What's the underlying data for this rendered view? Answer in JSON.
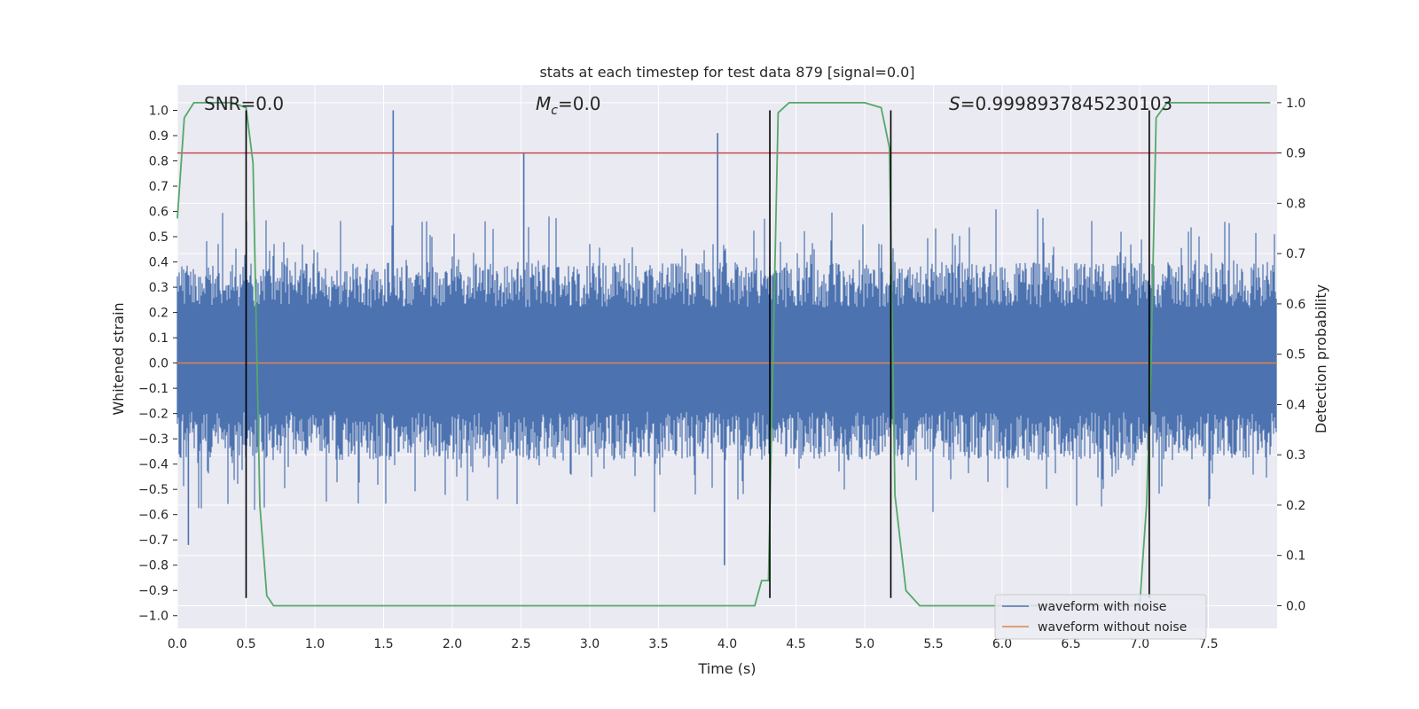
{
  "chart_data": {
    "type": "line",
    "title": "stats at each timestep for test data 879 [signal=0.0]",
    "xlabel": "Time (s)",
    "ylabel_left": "Whitened strain",
    "ylabel_right": "Detection probability",
    "xlim": [
      0.0,
      8.0
    ],
    "ylim_left": [
      -1.05,
      1.1
    ],
    "ylim_right": [
      -0.045,
      1.035
    ],
    "x_ticks": [
      "0.0",
      "0.5",
      "1.0",
      "1.5",
      "2.0",
      "2.5",
      "3.0",
      "3.5",
      "4.0",
      "4.5",
      "5.0",
      "5.5",
      "6.0",
      "6.5",
      "7.0",
      "7.5"
    ],
    "y_ticks_left": [
      "−1.0",
      "−0.9",
      "−0.8",
      "−0.7",
      "−0.6",
      "−0.5",
      "−0.4",
      "−0.3",
      "−0.2",
      "−0.1",
      "0.0",
      "0.1",
      "0.2",
      "0.3",
      "0.4",
      "0.5",
      "0.6",
      "0.7",
      "0.8",
      "0.9",
      "1.0"
    ],
    "y_ticks_right": [
      "0.0",
      "0.1",
      "0.2",
      "0.3",
      "0.4",
      "0.5",
      "0.6",
      "0.7",
      "0.8",
      "0.9",
      "1.0"
    ],
    "annotations": {
      "snr": "SNR=0.0",
      "mc_sym": "M",
      "mc_sub": "c",
      "mc_val": "=0.0",
      "s_sym": "S",
      "s_val": "=0.9998937845230103"
    },
    "series": [
      {
        "name": "waveform with noise",
        "color": "#4c72b0",
        "noise_envelope": [
          -0.35,
          0.4
        ],
        "peaks": [
          [
            1.57,
            1.0
          ],
          [
            3.93,
            0.91
          ],
          [
            2.52,
            0.83
          ],
          [
            3.98,
            -0.8
          ],
          [
            0.08,
            -0.72
          ]
        ]
      },
      {
        "name": "waveform without noise",
        "color": "#dd8452",
        "values_constant": 0.0
      }
    ],
    "threshold": {
      "value_right": 0.9,
      "color": "#c44e52"
    },
    "detection_probability": {
      "color": "#55a868",
      "x": [
        0.0,
        0.05,
        0.12,
        0.2,
        0.3,
        0.4,
        0.5,
        0.55,
        0.6,
        0.65,
        0.7,
        0.75,
        1.0,
        2.0,
        2.8,
        3.5,
        4.2,
        4.25,
        4.3,
        4.33,
        4.37,
        4.45,
        4.6,
        5.0,
        5.12,
        5.18,
        5.22,
        5.3,
        5.4,
        5.6,
        6.5,
        6.9,
        7.0,
        7.05,
        7.08,
        7.12,
        7.2,
        7.5,
        7.95
      ],
      "y": [
        0.77,
        0.97,
        1.0,
        1.0,
        1.0,
        1.0,
        0.99,
        0.88,
        0.2,
        0.02,
        0.0,
        0.0,
        0.0,
        0.0,
        0.0,
        0.0,
        0.0,
        0.05,
        0.05,
        0.45,
        0.98,
        1.0,
        1.0,
        1.0,
        0.99,
        0.91,
        0.22,
        0.03,
        0.0,
        0.0,
        0.0,
        0.0,
        0.0,
        0.2,
        0.45,
        0.97,
        1.0,
        1.0,
        1.0
      ]
    },
    "event_markers_s": [
      0.5,
      4.31,
      5.19,
      7.07
    ],
    "legend": {
      "placement": "lower-right",
      "entries": [
        "waveform with noise",
        "waveform without noise"
      ]
    }
  },
  "colors": {
    "panel_bg": "#eaeaf2",
    "grid": "#ffffff",
    "text": "#262626",
    "marker": "#000000"
  }
}
